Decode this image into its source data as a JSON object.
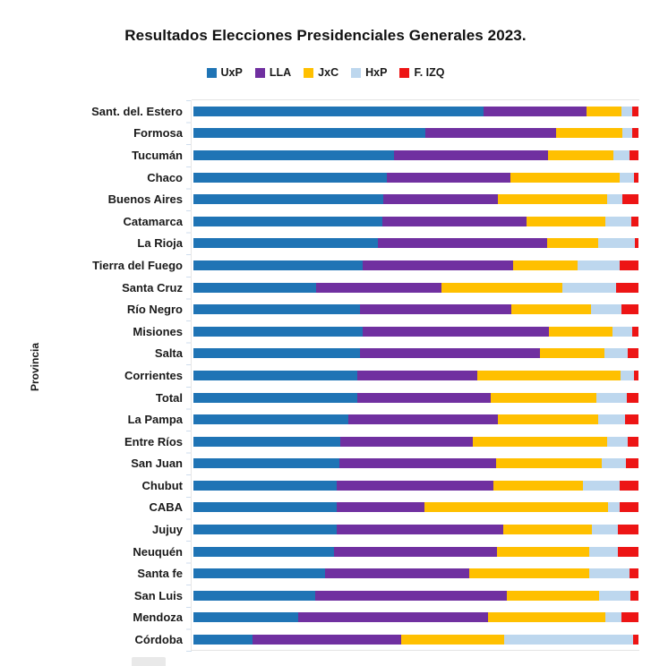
{
  "title": "Resultados Elecciones Presidenciales Generales 2023.",
  "y_axis_title": "Provincia",
  "colors": {
    "UxP": "#1F74B5",
    "LLA": "#7030A0",
    "JxC": "#FFC000",
    "HxP": "#BDD7EE",
    "F. IZQ": "#ED1515"
  },
  "chart_data": {
    "type": "bar",
    "orientation": "horizontal",
    "stacked": true,
    "unit": "percent",
    "xlim": [
      0,
      100
    ],
    "grid": false,
    "legend_position": "top",
    "title": "Resultados Elecciones Presidenciales Generales 2023.",
    "ylabel": "Provincia",
    "categories": [
      "Sant. del. Estero",
      "Formosa",
      "Tucumán",
      "Chaco",
      "Buenos Aires",
      "Catamarca",
      "La Rioja",
      "Tierra del Fuego",
      "Santa Cruz",
      "Río Negro",
      "Misiones",
      "Salta",
      "Corrientes",
      "Total",
      "La Pampa",
      "Entre Ríos",
      "San Juan",
      "Chubut",
      "CABA",
      "Jujuy",
      "Neuquén",
      "Santa fe",
      "San Luis",
      "Mendoza",
      "Córdoba"
    ],
    "series": [
      {
        "name": "UxP",
        "color": "#1F74B5",
        "values": [
          65.2,
          52.1,
          45.1,
          43.5,
          42.7,
          42.5,
          41.4,
          38.0,
          27.6,
          37.4,
          38.0,
          37.4,
          36.8,
          36.8,
          34.8,
          33.0,
          32.8,
          32.2,
          32.2,
          32.2,
          31.6,
          29.6,
          27.4,
          23.5,
          13.3
        ]
      },
      {
        "name": "LLA",
        "color": "#7030A0",
        "values": [
          23.1,
          29.4,
          34.6,
          27.7,
          25.8,
          32.3,
          38.1,
          33.8,
          28.2,
          34.0,
          41.9,
          40.5,
          27.0,
          30.0,
          33.6,
          29.8,
          35.2,
          35.2,
          19.7,
          37.4,
          36.6,
          32.4,
          43.1,
          42.7,
          33.4
        ]
      },
      {
        "name": "JxC",
        "color": "#FFC000",
        "values": [
          7.9,
          14.9,
          14.7,
          24.5,
          24.4,
          17.7,
          11.5,
          14.6,
          27.2,
          17.9,
          14.3,
          14.4,
          32.2,
          23.8,
          22.5,
          30.2,
          23.7,
          20.1,
          41.2,
          19.9,
          20.7,
          26.9,
          20.7,
          26.4,
          23.1
        ]
      },
      {
        "name": "HxP",
        "color": "#BDD7EE",
        "values": [
          2.4,
          2.2,
          3.6,
          3.3,
          3.4,
          5.8,
          8.2,
          9.4,
          12.0,
          6.8,
          4.3,
          5.3,
          3.0,
          6.7,
          6.1,
          4.6,
          5.5,
          8.3,
          2.7,
          5.9,
          6.5,
          9.0,
          6.9,
          3.5,
          29.0
        ]
      },
      {
        "name": "F. IZQ",
        "color": "#ED1515",
        "values": [
          1.4,
          1.4,
          2.0,
          1.0,
          3.7,
          1.7,
          0.8,
          4.2,
          5.0,
          3.9,
          1.5,
          2.4,
          1.0,
          2.7,
          3.0,
          2.4,
          2.8,
          4.2,
          4.2,
          4.6,
          4.6,
          2.1,
          1.9,
          3.9,
          1.2
        ]
      }
    ]
  }
}
